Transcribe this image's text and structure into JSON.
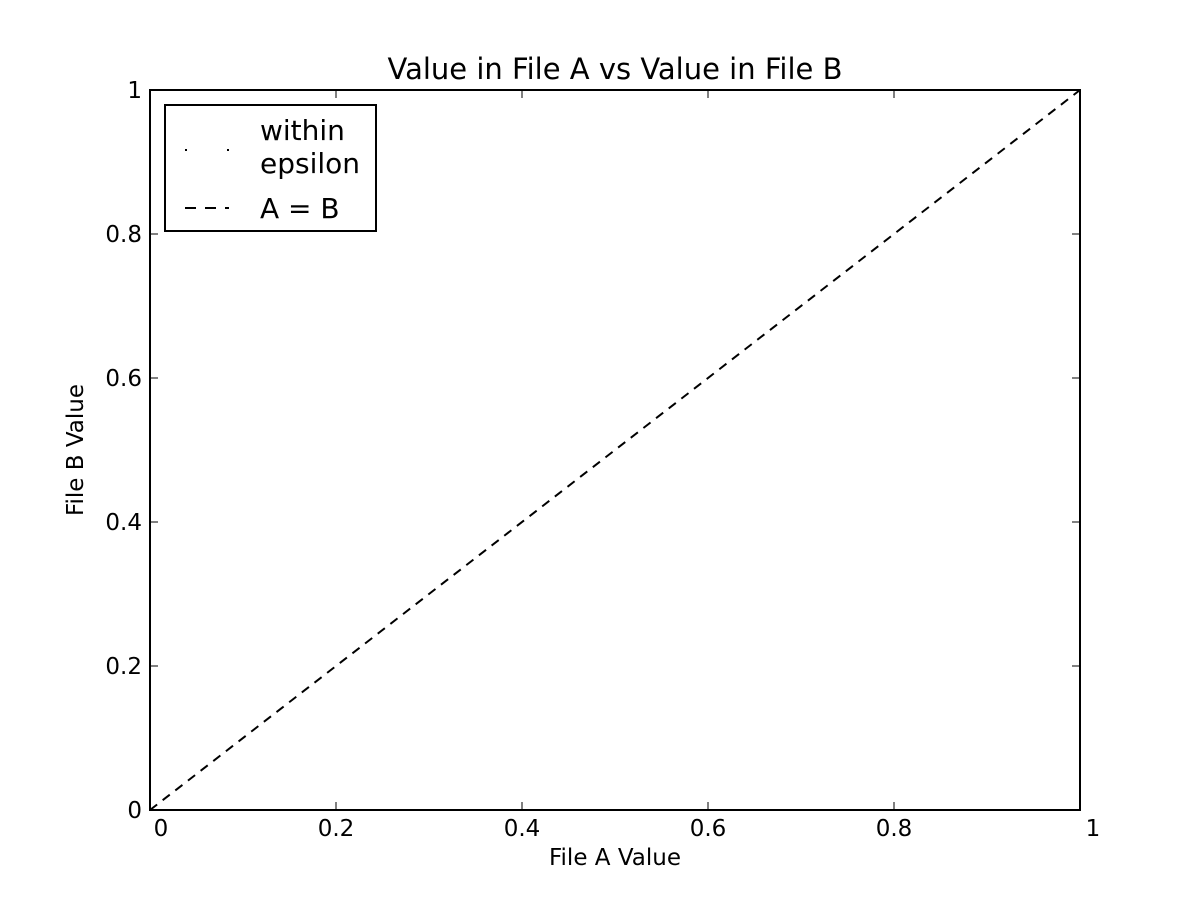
{
  "chart_data": {
    "type": "scatter",
    "title": "Value in File A vs Value in File B",
    "xlabel": "File A Value",
    "ylabel": "File B Value",
    "xlim": [
      0,
      1
    ],
    "ylim": [
      0,
      1
    ],
    "x_ticks": [
      0,
      0.2,
      0.4,
      0.6,
      0.8,
      1
    ],
    "x_tick_labels": [
      "0",
      "0.2",
      "0.4",
      "0.6",
      "0.8",
      "1"
    ],
    "y_ticks": [
      0,
      0.2,
      0.4,
      0.6,
      0.8,
      1
    ],
    "y_tick_labels": [
      "0",
      "0.2",
      "0.4",
      "0.6",
      "0.8",
      "1"
    ],
    "grid": false,
    "legend_position": "top-left",
    "series": [
      {
        "name": "within epsilon",
        "kind": "points",
        "marker": "pixel",
        "color": "#000000",
        "points": []
      },
      {
        "name": "A = B",
        "kind": "line",
        "linestyle": "dashed",
        "color": "#000000",
        "points": [
          [
            0,
            0
          ],
          [
            1,
            1
          ]
        ]
      }
    ],
    "legend": {
      "items": [
        {
          "label_lines": [
            "within",
            "epsilon"
          ],
          "marker": "pixel"
        },
        {
          "label_lines": [
            "A = B"
          ],
          "marker": "dashed-line"
        }
      ]
    }
  }
}
